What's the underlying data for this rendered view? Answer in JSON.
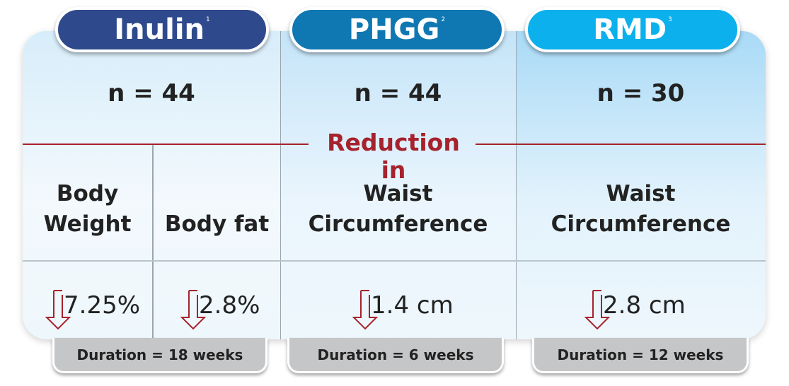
{
  "columns": [
    {
      "name": "Inulin",
      "ref": "1",
      "n": "n = 44",
      "duration": "Duration = 18 weeks",
      "color": "#2f4a8c"
    },
    {
      "name": "PHGG",
      "ref": "2",
      "n": "n = 44",
      "duration": "Duration = 6 weeks",
      "color": "#0f78b3"
    },
    {
      "name": "RMD",
      "ref": "3",
      "n": "n = 30",
      "duration": "Duration = 12 weeks",
      "color": "#0bb0ec"
    }
  ],
  "reduction_label": "Reduction in",
  "metrics": [
    {
      "line1": "Body",
      "line2": "Weight",
      "value": "7.25%"
    },
    {
      "line1": "",
      "line2": "Body fat",
      "value": "2.8%"
    },
    {
      "line1": "Waist",
      "line2": "Circumference",
      "value": "1.4 cm"
    },
    {
      "line1": "Waist",
      "line2": "Circumference",
      "value": "2.8 cm"
    }
  ],
  "accent_color": "#a6222c",
  "icons": {
    "reduction": "down-arrow-icon"
  }
}
